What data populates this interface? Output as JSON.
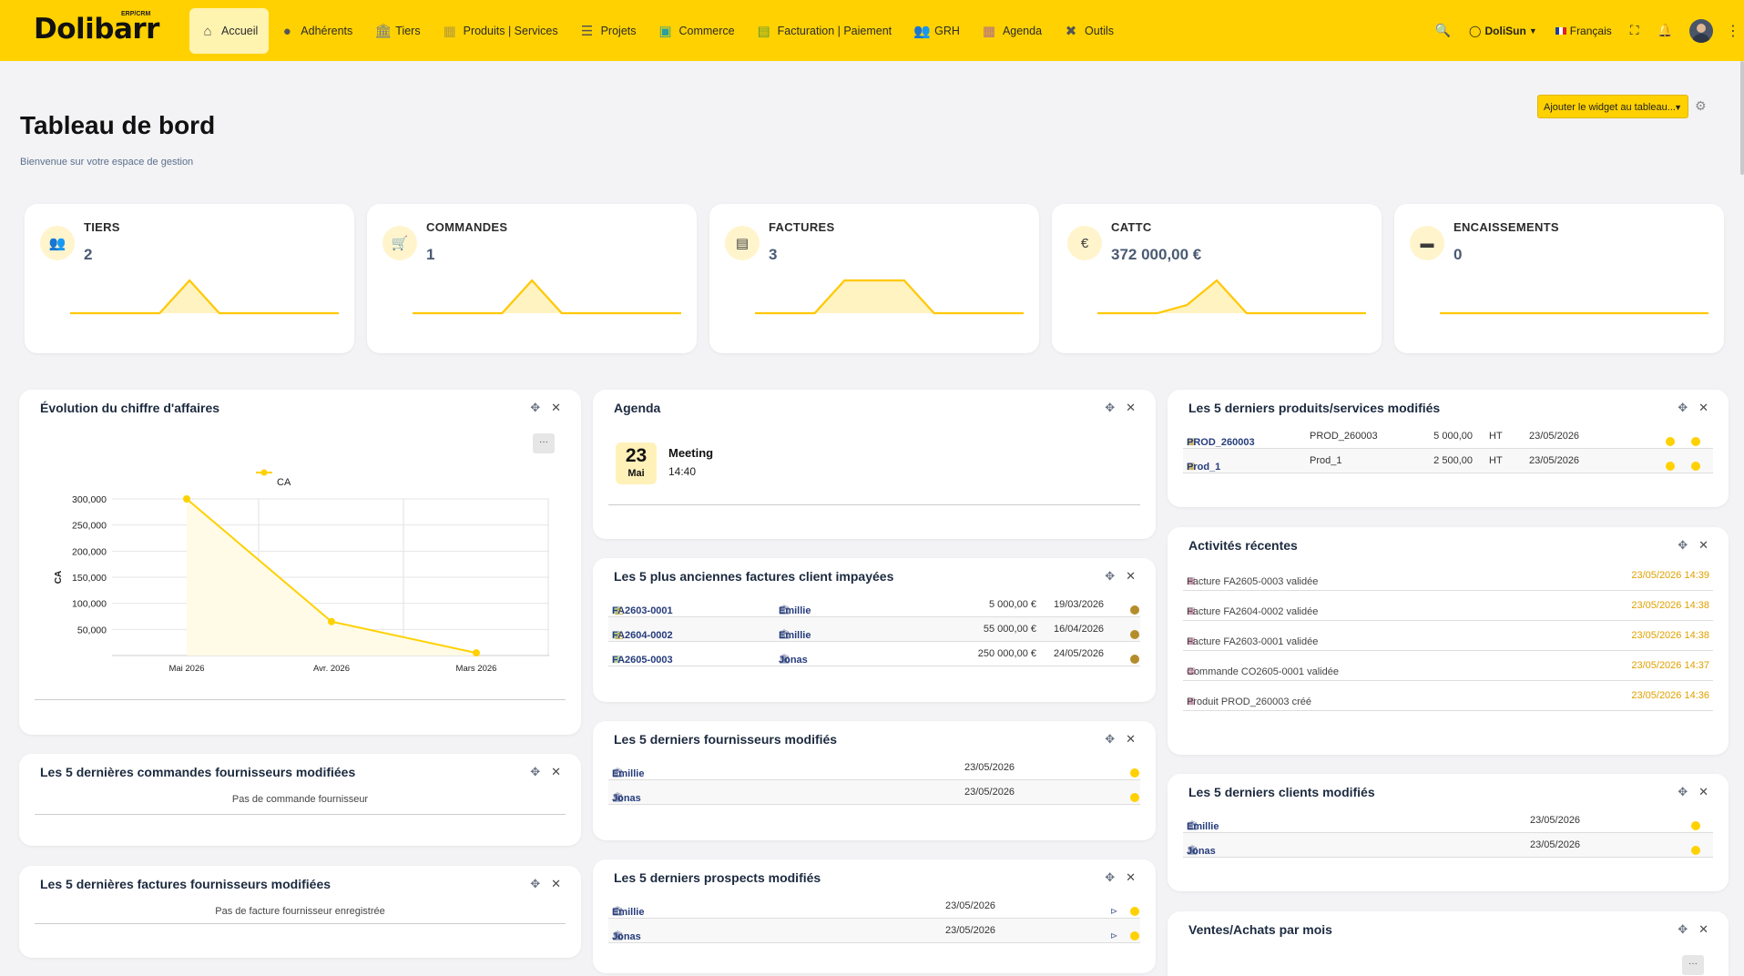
{
  "app": {
    "logo": "Dolibarr",
    "logo_tag": "ERP/CRM"
  },
  "nav": [
    {
      "label": "Accueil",
      "icon": "home-icon",
      "glyph": "⌂",
      "active": true
    },
    {
      "label": "Adhérents",
      "icon": "user-icon",
      "glyph": "●"
    },
    {
      "label": "Tiers",
      "icon": "building-icon",
      "glyph": "🏛"
    },
    {
      "label": "Produits | Services",
      "icon": "cubes-icon",
      "glyph": "▦"
    },
    {
      "label": "Projets",
      "icon": "tasks-icon",
      "glyph": "☰"
    },
    {
      "label": "Commerce",
      "icon": "suitcase-icon",
      "glyph": "▣"
    },
    {
      "label": "Facturation | Paiement",
      "icon": "file-invoice-icon",
      "glyph": "▤"
    },
    {
      "label": "GRH",
      "icon": "users-icon",
      "glyph": "👥"
    },
    {
      "label": "Agenda",
      "icon": "calendar-icon",
      "glyph": "▦"
    },
    {
      "label": "Outils",
      "icon": "tools-icon",
      "glyph": "✖"
    }
  ],
  "topright": {
    "entity": "DoliSun",
    "language": "Français"
  },
  "header": {
    "title": "Tableau de bord",
    "subtitle": "Bienvenue sur votre espace de gestion",
    "widget_select": "Ajouter le widget au tableau..."
  },
  "kpis": [
    {
      "label": "TIERS",
      "value": "2",
      "icon": "users-icon",
      "glyph": "👥",
      "spark": [
        0,
        0,
        0,
        0,
        1,
        0,
        0,
        0,
        0,
        0
      ]
    },
    {
      "label": "COMMANDES",
      "value": "1",
      "icon": "cart-icon",
      "glyph": "🛒",
      "spark": [
        0,
        0,
        0,
        0,
        1,
        0,
        0,
        0,
        0,
        0
      ]
    },
    {
      "label": "FACTURES",
      "value": "3",
      "icon": "file-icon",
      "glyph": "▤",
      "spark": [
        0,
        0,
        0,
        1,
        1,
        1,
        0,
        0,
        0,
        0
      ]
    },
    {
      "label": "CATTC",
      "value": "372 000,00 €",
      "icon": "euro-icon",
      "glyph": "€",
      "spark": [
        0,
        0,
        0,
        0.25,
        1,
        0,
        0,
        0,
        0,
        0
      ]
    },
    {
      "label": "ENCAISSEMENTS",
      "value": "0",
      "icon": "wallet-icon",
      "glyph": "▬",
      "spark": [
        0,
        0,
        0,
        0,
        0,
        0,
        0,
        0,
        0,
        0
      ]
    }
  ],
  "ca_widget": {
    "title": "Évolution du chiffre d'affaires",
    "menu_label": "···"
  },
  "chart_data": {
    "type": "line",
    "x": [
      "Mai 2026",
      "Avr. 2026",
      "Mars 2026"
    ],
    "series": [
      {
        "name": "CA",
        "values": [
          300000,
          65000,
          5000
        ]
      }
    ],
    "ylabel": "CA",
    "yticks": [
      "50,000",
      "100,000",
      "150,000",
      "200,000",
      "250,000",
      "300,000"
    ],
    "ylim": [
      0,
      300000
    ],
    "color": "#ffd100",
    "grid": true,
    "legend": "top"
  },
  "agenda": {
    "title": "Agenda",
    "day": "23",
    "month": "Mai",
    "event": "Meeting",
    "time": "14:40"
  },
  "unpaid": {
    "title": "Les 5 plus anciennes factures client impayées",
    "rows": [
      {
        "ref": "FA2603-0001",
        "warn": true,
        "client": "Emillie",
        "amount": "5 000,00 €",
        "date": "19/03/2026"
      },
      {
        "ref": "FA2604-0002",
        "warn": true,
        "client": "Emillie",
        "amount": "55 000,00 €",
        "date": "16/04/2026"
      },
      {
        "ref": "FA2605-0003",
        "warn": false,
        "client": "Jonas",
        "amount": "250 000,00 €",
        "date": "24/05/2026"
      }
    ]
  },
  "suppliers": {
    "title": "Les 5 derniers fournisseurs modifiés",
    "rows": [
      {
        "name": "Emillie",
        "date": "23/05/2026"
      },
      {
        "name": "Jonas",
        "date": "23/05/2026"
      }
    ]
  },
  "prospects": {
    "title": "Les 5 derniers prospects modifiés",
    "rows": [
      {
        "name": "Emillie",
        "date": "23/05/2026"
      },
      {
        "name": "Jonas",
        "date": "23/05/2026"
      }
    ]
  },
  "supplier_orders": {
    "title": "Les 5 dernières commandes fournisseurs modifiées",
    "empty": "Pas de commande fournisseur"
  },
  "supplier_invoices": {
    "title": "Les 5 dernières factures fournisseurs modifiées",
    "empty": "Pas de facture fournisseur enregistrée"
  },
  "products": {
    "title": "Les 5 derniers produits/services modifiés",
    "rows": [
      {
        "ref": "PROD_260003",
        "label": "PROD_260003",
        "price": "5 000,00",
        "tax": "HT",
        "date": "23/05/2026"
      },
      {
        "ref": "Prod_1",
        "label": "Prod_1",
        "price": "2 500,00",
        "tax": "HT",
        "date": "23/05/2026"
      }
    ]
  },
  "activities": {
    "title": "Activités récentes",
    "rows": [
      {
        "text": "Facture FA2605-0003 validée",
        "date": "23/05/2026 14:39"
      },
      {
        "text": "Facture FA2604-0002 validée",
        "date": "23/05/2026 14:38"
      },
      {
        "text": "Facture FA2603-0001 validée",
        "date": "23/05/2026 14:38"
      },
      {
        "text": "Commande CO2605-0001 validée",
        "date": "23/05/2026 14:37"
      },
      {
        "text": "Produit PROD_260003 créé",
        "date": "23/05/2026 14:36"
      }
    ]
  },
  "customers": {
    "title": "Les 5 derniers clients modifiés",
    "rows": [
      {
        "name": "Emillie",
        "date": "23/05/2026"
      },
      {
        "name": "Jonas",
        "date": "23/05/2026"
      }
    ]
  },
  "sales": {
    "title": "Ventes/Achats par mois",
    "menu_label": "···"
  }
}
